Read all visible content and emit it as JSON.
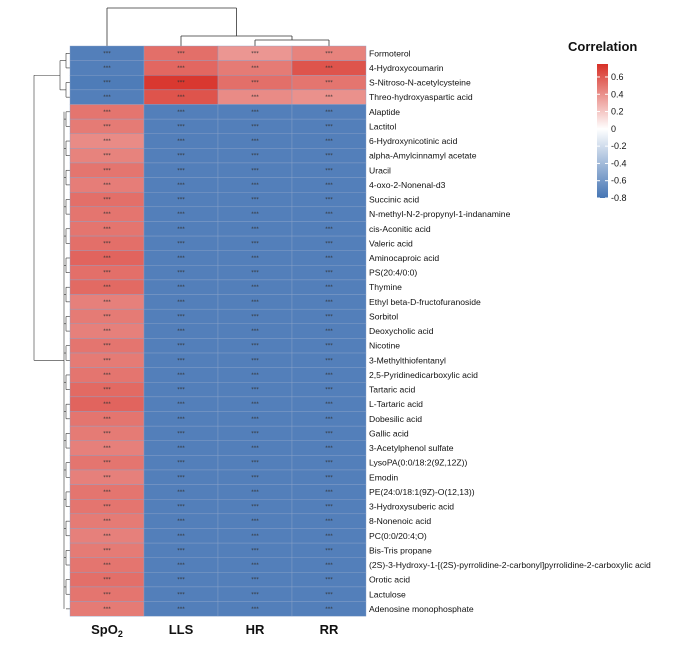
{
  "chart_data": {
    "type": "heatmap",
    "title": "",
    "legend_title": "Correlation",
    "legend_placement": "top-right",
    "color_range": [
      -0.8,
      0.75
    ],
    "legend_ticks": [
      0.6,
      0.4,
      0.2,
      0,
      -0.2,
      -0.4,
      -0.6,
      -0.8
    ],
    "colors": {
      "low": "#4575b4",
      "mid": "#ffffff",
      "high": "#d73027"
    },
    "columns": [
      {
        "main": "SpO",
        "sub": "2"
      },
      {
        "main": "LLS",
        "sub": ""
      },
      {
        "main": "HR",
        "sub": ""
      },
      {
        "main": "RR",
        "sub": ""
      }
    ],
    "significance_mark": "***",
    "rows": [
      {
        "name": "Formoterol",
        "values": [
          -0.74,
          0.52,
          0.38,
          0.45
        ]
      },
      {
        "name": "4-Hydroxycoumarin",
        "values": [
          -0.74,
          0.55,
          0.48,
          0.62
        ]
      },
      {
        "name": "S-Nitroso-N-acetylcysteine",
        "values": [
          -0.76,
          0.72,
          0.52,
          0.5
        ]
      },
      {
        "name": "Threo-hydroxyaspartic acid",
        "values": [
          -0.74,
          0.62,
          0.42,
          0.4
        ]
      },
      {
        "name": "Alaptide",
        "values": [
          0.5,
          -0.74,
          -0.74,
          -0.74
        ]
      },
      {
        "name": "Lactitol",
        "values": [
          0.48,
          -0.74,
          -0.74,
          -0.74
        ]
      },
      {
        "name": "6-Hydroxynicotinic acid",
        "values": [
          0.42,
          -0.74,
          -0.74,
          -0.74
        ]
      },
      {
        "name": "alpha-Amylcinnamyl acetate",
        "values": [
          0.45,
          -0.74,
          -0.74,
          -0.74
        ]
      },
      {
        "name": "Uracil",
        "values": [
          0.5,
          -0.74,
          -0.74,
          -0.74
        ]
      },
      {
        "name": "4-oxo-2-Nonenal-d3",
        "values": [
          0.47,
          -0.74,
          -0.74,
          -0.74
        ]
      },
      {
        "name": "Succinic acid",
        "values": [
          0.52,
          -0.74,
          -0.74,
          -0.74
        ]
      },
      {
        "name": "N-methyl-N-2-propynyl-1-indanamine",
        "values": [
          0.5,
          -0.74,
          -0.74,
          -0.74
        ]
      },
      {
        "name": "cis-Aconitic acid",
        "values": [
          0.5,
          -0.74,
          -0.74,
          -0.74
        ]
      },
      {
        "name": "Valeric acid",
        "values": [
          0.52,
          -0.74,
          -0.74,
          -0.74
        ]
      },
      {
        "name": "Aminocaproic acid",
        "values": [
          0.56,
          -0.74,
          -0.74,
          -0.74
        ]
      },
      {
        "name": "PS(20:4/0:0)",
        "values": [
          0.52,
          -0.74,
          -0.74,
          -0.74
        ]
      },
      {
        "name": "Thymine",
        "values": [
          0.54,
          -0.74,
          -0.74,
          -0.74
        ]
      },
      {
        "name": "Ethyl beta-D-fructofuranoside",
        "values": [
          0.46,
          -0.74,
          -0.74,
          -0.74
        ]
      },
      {
        "name": "Sorbitol",
        "values": [
          0.48,
          -0.74,
          -0.74,
          -0.74
        ]
      },
      {
        "name": "Deoxycholic acid",
        "values": [
          0.46,
          -0.74,
          -0.74,
          -0.74
        ]
      },
      {
        "name": "Nicotine",
        "values": [
          0.5,
          -0.74,
          -0.74,
          -0.74
        ]
      },
      {
        "name": "3-Methylthiofentanyl",
        "values": [
          0.48,
          -0.74,
          -0.74,
          -0.74
        ]
      },
      {
        "name": "2,5-Pyridinedicarboxylic acid",
        "values": [
          0.5,
          -0.74,
          -0.74,
          -0.74
        ]
      },
      {
        "name": "Tartaric acid",
        "values": [
          0.54,
          -0.74,
          -0.74,
          -0.74
        ]
      },
      {
        "name": "L-Tartaric acid",
        "values": [
          0.56,
          -0.74,
          -0.74,
          -0.74
        ]
      },
      {
        "name": "Dobesilic acid",
        "values": [
          0.5,
          -0.74,
          -0.74,
          -0.74
        ]
      },
      {
        "name": "Gallic acid",
        "values": [
          0.48,
          -0.74,
          -0.74,
          -0.74
        ]
      },
      {
        "name": "3-Acetylphenol sulfate",
        "values": [
          0.46,
          -0.74,
          -0.74,
          -0.74
        ]
      },
      {
        "name": "LysoPA(0:0/18:2(9Z,12Z))",
        "values": [
          0.5,
          -0.74,
          -0.74,
          -0.74
        ]
      },
      {
        "name": "Emodin",
        "values": [
          0.46,
          -0.74,
          -0.74,
          -0.74
        ]
      },
      {
        "name": "PE(24:0/18:1(9Z)-O(12,13))",
        "values": [
          0.5,
          -0.74,
          -0.74,
          -0.74
        ]
      },
      {
        "name": "3-Hydroxysuberic acid",
        "values": [
          0.5,
          -0.74,
          -0.74,
          -0.74
        ]
      },
      {
        "name": "8-Nonenoic acid",
        "values": [
          0.48,
          -0.74,
          -0.74,
          -0.74
        ]
      },
      {
        "name": "PC(0:0/20:4;O)",
        "values": [
          0.46,
          -0.74,
          -0.74,
          -0.74
        ]
      },
      {
        "name": "Bis-Tris propane",
        "values": [
          0.48,
          -0.74,
          -0.74,
          -0.74
        ]
      },
      {
        "name": "(2S)-3-Hydroxy-1-[(2S)-pyrrolidine-2-carbonyl]pyrrolidine-2-carboxylic acid",
        "values": [
          0.5,
          -0.74,
          -0.74,
          -0.74
        ]
      },
      {
        "name": "Orotic acid",
        "values": [
          0.52,
          -0.74,
          -0.74,
          -0.74
        ]
      },
      {
        "name": "Lactulose",
        "values": [
          0.5,
          -0.74,
          -0.74,
          -0.74
        ]
      },
      {
        "name": "Adenosine monophosphate",
        "values": [
          0.48,
          -0.74,
          -0.74,
          -0.74
        ]
      }
    ]
  }
}
